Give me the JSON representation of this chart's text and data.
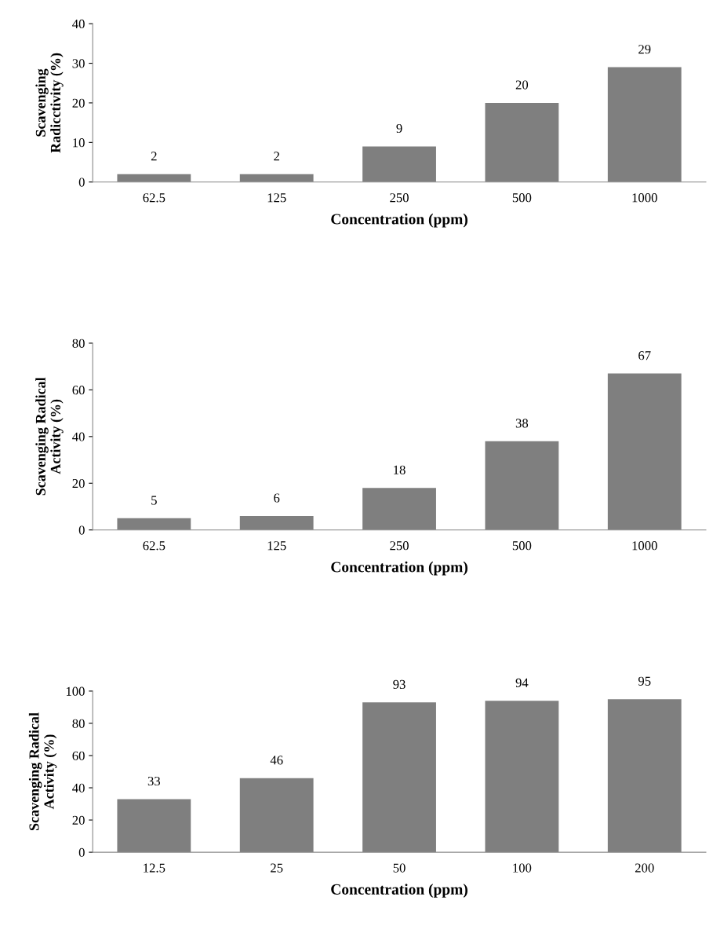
{
  "chart_data": [
    {
      "type": "bar",
      "categories": [
        "62.5",
        "125",
        "250",
        "500",
        "1000"
      ],
      "values": [
        2,
        2,
        9,
        20,
        29
      ],
      "color": "#7f7f7f",
      "xlabel": "Concentration (ppm)",
      "ylabel": "Scavenging\nRadicctivity (%)",
      "ylim": [
        0,
        40
      ],
      "yticks": [
        0,
        10,
        20,
        30,
        40
      ],
      "data_labels": true,
      "grid": false,
      "legend": false
    },
    {
      "type": "bar",
      "categories": [
        "62.5",
        "125",
        "250",
        "500",
        "1000"
      ],
      "values": [
        5,
        6,
        18,
        38,
        67
      ],
      "color": "#7f7f7f",
      "xlabel": "Concentration (ppm)",
      "ylabel": "Scavenging Radical\nActivity (%)",
      "ylim": [
        0,
        80
      ],
      "yticks": [
        0,
        20,
        40,
        60,
        80
      ],
      "data_labels": true,
      "grid": false,
      "legend": false
    },
    {
      "type": "bar",
      "categories": [
        "12.5",
        "25",
        "50",
        "100",
        "200"
      ],
      "values": [
        33,
        46,
        93,
        94,
        95
      ],
      "color": "#7f7f7f",
      "xlabel": "Concentration (ppm)",
      "ylabel": "Scavenging Radical\nActivity (%)",
      "ylim": [
        0,
        100
      ],
      "yticks": [
        0,
        20,
        40,
        60,
        80,
        100
      ],
      "data_labels": true,
      "grid": false,
      "legend": false
    }
  ]
}
